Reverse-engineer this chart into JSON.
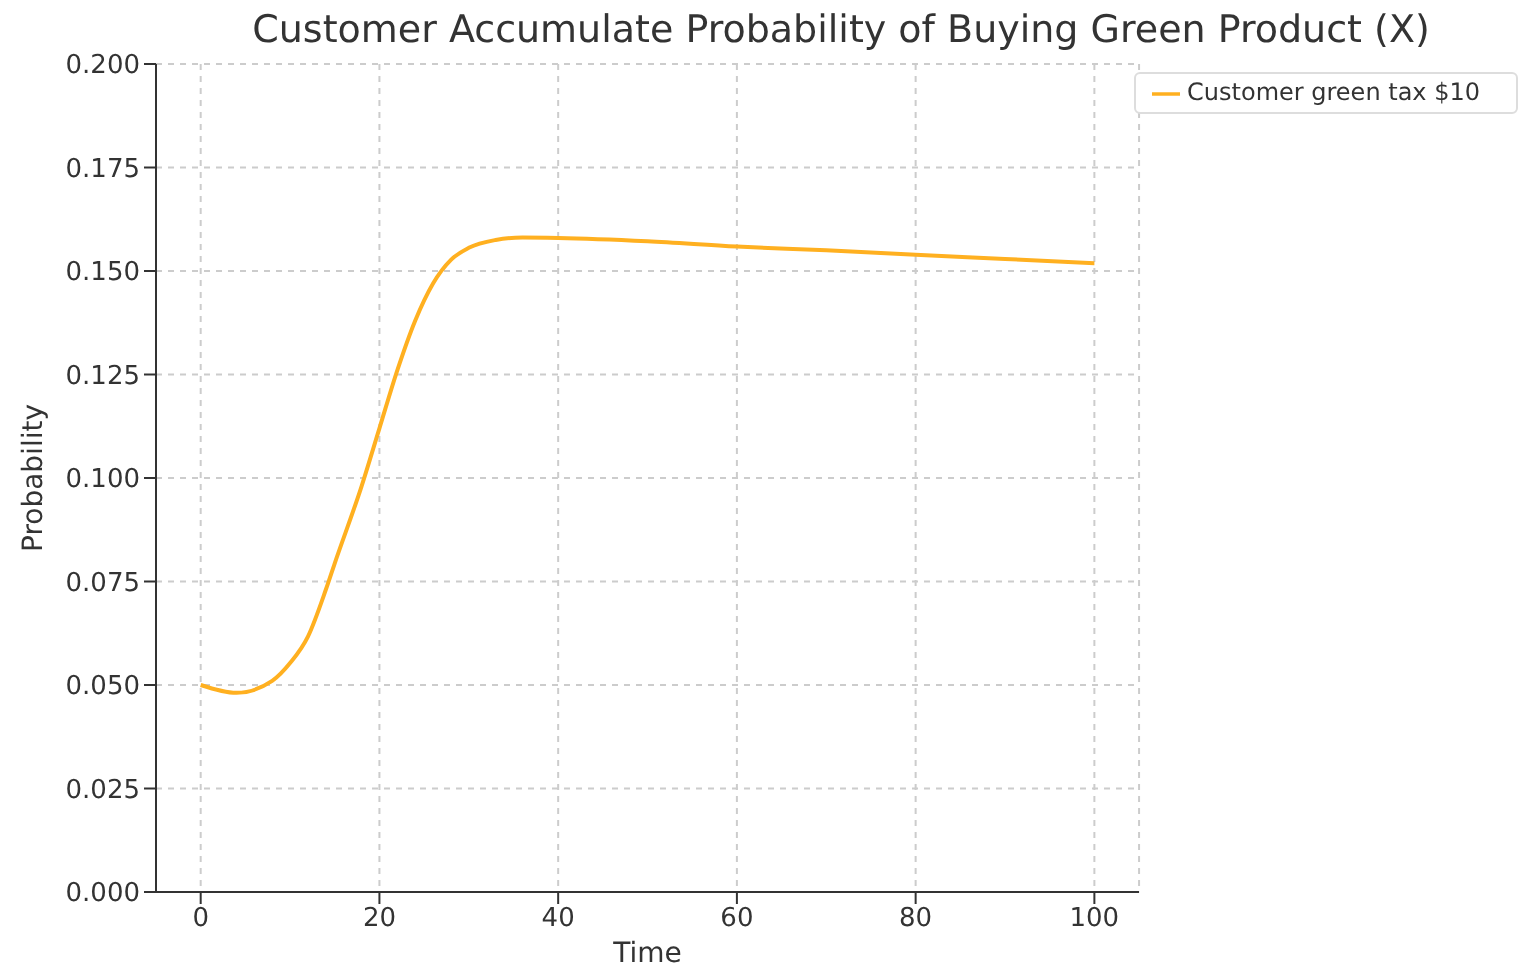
{
  "chart_data": {
    "type": "line",
    "title": "Customer Accumulate Probability of Buying Green Product (X)",
    "xlabel": "Time",
    "ylabel": "Probability",
    "xlim": [
      -5,
      105
    ],
    "xticks": [
      0,
      20,
      40,
      60,
      80,
      100
    ],
    "ylim": [
      0,
      0.2
    ],
    "yticks": [
      {
        "value": 0,
        "label": "0.000"
      },
      {
        "value": 0.025,
        "label": "0.025"
      },
      {
        "value": 0.05,
        "label": "0.050"
      },
      {
        "value": 0.075,
        "label": "0.075"
      },
      {
        "value": 0.1,
        "label": "0.100"
      },
      {
        "value": 0.125,
        "label": "0.125"
      },
      {
        "value": 0.15,
        "label": "0.150"
      },
      {
        "value": 0.175,
        "label": "0.175"
      },
      {
        "value": 0.2,
        "label": "0.200"
      }
    ],
    "grid": true,
    "legend": "top right",
    "line_style": "solid",
    "marker": "none",
    "x": [
      0,
      4,
      8,
      10,
      12,
      14,
      15,
      18,
      20,
      22,
      24,
      26,
      28,
      30,
      33,
      36,
      40,
      50,
      60,
      70,
      80,
      90,
      100
    ],
    "series": [
      {
        "name": "Customer green tax $10",
        "color": "#ffb020",
        "values": [
          0.05,
          0.0481,
          0.051,
          0.0553,
          0.0617,
          0.073,
          0.0794,
          0.098,
          0.112,
          0.126,
          0.138,
          0.147,
          0.1527,
          0.1556,
          0.1575,
          0.1581,
          0.158,
          0.1572,
          0.1559,
          0.155,
          0.1539,
          0.1529,
          0.1519
        ]
      }
    ]
  }
}
